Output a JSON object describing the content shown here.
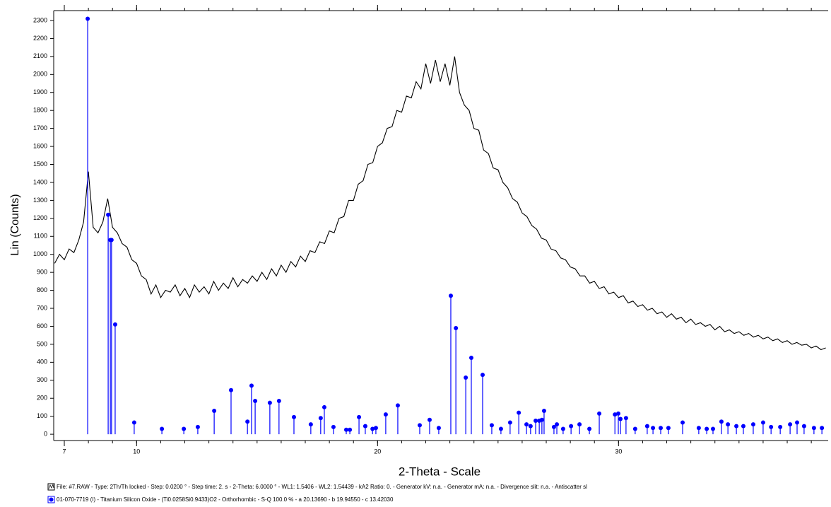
{
  "chart_data": {
    "type": "line",
    "ylabel": "Lin (Counts)",
    "xlabel": "2-Theta - Scale",
    "xlim": [
      6.56,
      38.7
    ],
    "ylim": [
      -35,
      2355
    ],
    "xticks": [
      7,
      10,
      20,
      30
    ],
    "xminor_ticks": [
      7,
      8,
      9,
      10,
      11,
      12,
      13,
      14,
      15,
      16,
      17,
      18,
      19,
      20,
      21,
      22,
      23,
      24,
      25,
      26,
      27,
      28,
      29,
      30,
      31,
      32,
      33,
      34,
      35,
      36,
      37,
      38
    ],
    "yticks": [
      0,
      100,
      200,
      300,
      400,
      500,
      600,
      700,
      800,
      900,
      1000,
      1100,
      1200,
      1300,
      1400,
      1500,
      1600,
      1700,
      1800,
      1900,
      2000,
      2100,
      2200,
      2300
    ],
    "series": [
      {
        "name": "File: #7.RAW - Type: 2Th/Th locked - Step: 0.0200 ° - Step time: 2. s - 2-Theta: 6.0000 ° - WL1: 1.5406 - WL2: 1.54439 - kA2 Ratio: 0. - Generator kV: n.a. - Generator mA: n.a. - Divergence slit: n.a. - Antiscatter sl",
        "type": "line",
        "color": "#000000",
        "x": [
          6.6,
          6.8,
          7.0,
          7.2,
          7.4,
          7.6,
          7.8,
          8.0,
          8.2,
          8.4,
          8.6,
          8.8,
          9.0,
          9.2,
          9.4,
          9.6,
          9.8,
          10.0,
          10.2,
          10.4,
          10.6,
          10.8,
          11.0,
          11.2,
          11.4,
          11.6,
          11.8,
          12.0,
          12.2,
          12.4,
          12.6,
          12.8,
          13.0,
          13.2,
          13.4,
          13.6,
          13.8,
          14.0,
          14.2,
          14.4,
          14.6,
          14.8,
          15.0,
          15.2,
          15.4,
          15.6,
          15.8,
          16.0,
          16.2,
          16.4,
          16.6,
          16.8,
          17.0,
          17.2,
          17.4,
          17.6,
          17.8,
          18.0,
          18.2,
          18.4,
          18.6,
          18.8,
          19.0,
          19.2,
          19.4,
          19.6,
          19.8,
          20.0,
          20.2,
          20.4,
          20.6,
          20.8,
          21.0,
          21.2,
          21.4,
          21.6,
          21.8,
          22.0,
          22.2,
          22.4,
          22.6,
          22.8,
          23.0,
          23.2,
          23.4,
          23.6,
          23.8,
          24.0,
          24.2,
          24.4,
          24.6,
          24.8,
          25.0,
          25.2,
          25.4,
          25.6,
          25.8,
          26.0,
          26.2,
          26.4,
          26.6,
          26.8,
          27.0,
          27.2,
          27.4,
          27.6,
          27.8,
          28.0,
          28.2,
          28.4,
          28.6,
          28.8,
          29.0,
          29.2,
          29.4,
          29.6,
          29.8,
          30.0,
          30.2,
          30.4,
          30.6,
          30.8,
          31.0,
          31.2,
          31.4,
          31.6,
          31.8,
          32.0,
          32.2,
          32.4,
          32.6,
          32.8,
          33.0,
          33.2,
          33.4,
          33.6,
          33.8,
          34.0,
          34.2,
          34.4,
          34.6,
          34.8,
          35.0,
          35.2,
          35.4,
          35.6,
          35.8,
          36.0,
          36.2,
          36.4,
          36.6,
          36.8,
          37.0,
          37.2,
          37.4,
          37.6,
          37.8,
          38.0,
          38.2,
          38.4,
          38.6
        ],
        "values": [
          950,
          1000,
          970,
          1030,
          1010,
          1080,
          1180,
          1460,
          1150,
          1120,
          1180,
          1310,
          1150,
          1120,
          1060,
          1040,
          970,
          950,
          880,
          860,
          780,
          830,
          760,
          800,
          790,
          830,
          770,
          810,
          760,
          830,
          790,
          820,
          780,
          850,
          800,
          840,
          810,
          870,
          820,
          860,
          840,
          880,
          850,
          900,
          860,
          920,
          880,
          940,
          900,
          960,
          930,
          990,
          960,
          1020,
          1010,
          1070,
          1060,
          1130,
          1120,
          1200,
          1210,
          1300,
          1300,
          1390,
          1410,
          1500,
          1510,
          1600,
          1620,
          1700,
          1710,
          1800,
          1790,
          1880,
          1870,
          1960,
          1920,
          2060,
          1950,
          2080,
          1960,
          2060,
          1940,
          2100,
          1900,
          1830,
          1800,
          1700,
          1690,
          1580,
          1560,
          1480,
          1470,
          1400,
          1370,
          1310,
          1290,
          1230,
          1210,
          1160,
          1140,
          1090,
          1080,
          1030,
          1020,
          980,
          970,
          930,
          920,
          880,
          880,
          840,
          850,
          810,
          820,
          780,
          790,
          760,
          770,
          730,
          740,
          710,
          720,
          690,
          700,
          670,
          680,
          650,
          670,
          640,
          650,
          620,
          640,
          610,
          620,
          600,
          610,
          580,
          600,
          570,
          580,
          560,
          570,
          550,
          560,
          540,
          550,
          530,
          540,
          520,
          530,
          510,
          520,
          500,
          510,
          495,
          500,
          480,
          490,
          470,
          480
        ]
      },
      {
        "name": "01-070-7719 (I) - Titanium Silicon Oxide - (Ti0.0258Si0.9433)O2 - Orthorhombic - S-Q 100.0 % - a 20.13690 - b 19.94550 - c 13.42030",
        "type": "stick",
        "color": "#0000ff",
        "x": [
          7.97,
          8.82,
          8.91,
          8.96,
          9.11,
          9.9,
          11.05,
          11.96,
          12.54,
          13.22,
          13.92,
          14.6,
          14.77,
          14.92,
          15.53,
          15.91,
          16.53,
          17.23,
          17.64,
          17.79,
          18.17,
          18.7,
          18.85,
          19.23,
          19.49,
          19.79,
          19.93,
          20.34,
          20.84,
          21.75,
          22.16,
          22.54,
          23.04,
          23.25,
          23.66,
          23.89,
          24.36,
          24.74,
          25.12,
          25.5,
          25.86,
          26.18,
          26.35,
          26.56,
          26.71,
          26.82,
          26.91,
          27.32,
          27.44,
          27.7,
          28.03,
          28.38,
          28.79,
          29.2,
          29.85,
          29.99,
          30.08,
          30.31,
          30.69,
          31.19,
          31.43,
          31.75,
          32.07,
          32.66,
          33.33,
          33.66,
          33.92,
          34.27,
          34.54,
          34.89,
          35.18,
          35.59,
          36.0,
          36.33,
          36.71,
          37.12,
          37.41,
          37.7,
          38.11,
          38.44
        ],
        "values": [
          2310,
          1220,
          1080,
          1080,
          610,
          65,
          30,
          30,
          40,
          130,
          245,
          70,
          270,
          185,
          175,
          185,
          95,
          55,
          90,
          150,
          40,
          25,
          25,
          95,
          45,
          30,
          35,
          110,
          160,
          50,
          80,
          35,
          770,
          590,
          315,
          425,
          330,
          50,
          30,
          65,
          120,
          55,
          45,
          75,
          75,
          80,
          130,
          40,
          55,
          30,
          45,
          55,
          30,
          115,
          110,
          115,
          85,
          90,
          30,
          45,
          35,
          35,
          35,
          65,
          35,
          30,
          30,
          70,
          55,
          45,
          45,
          55,
          65,
          40,
          40,
          55,
          65,
          45,
          35,
          35
        ]
      }
    ]
  }
}
